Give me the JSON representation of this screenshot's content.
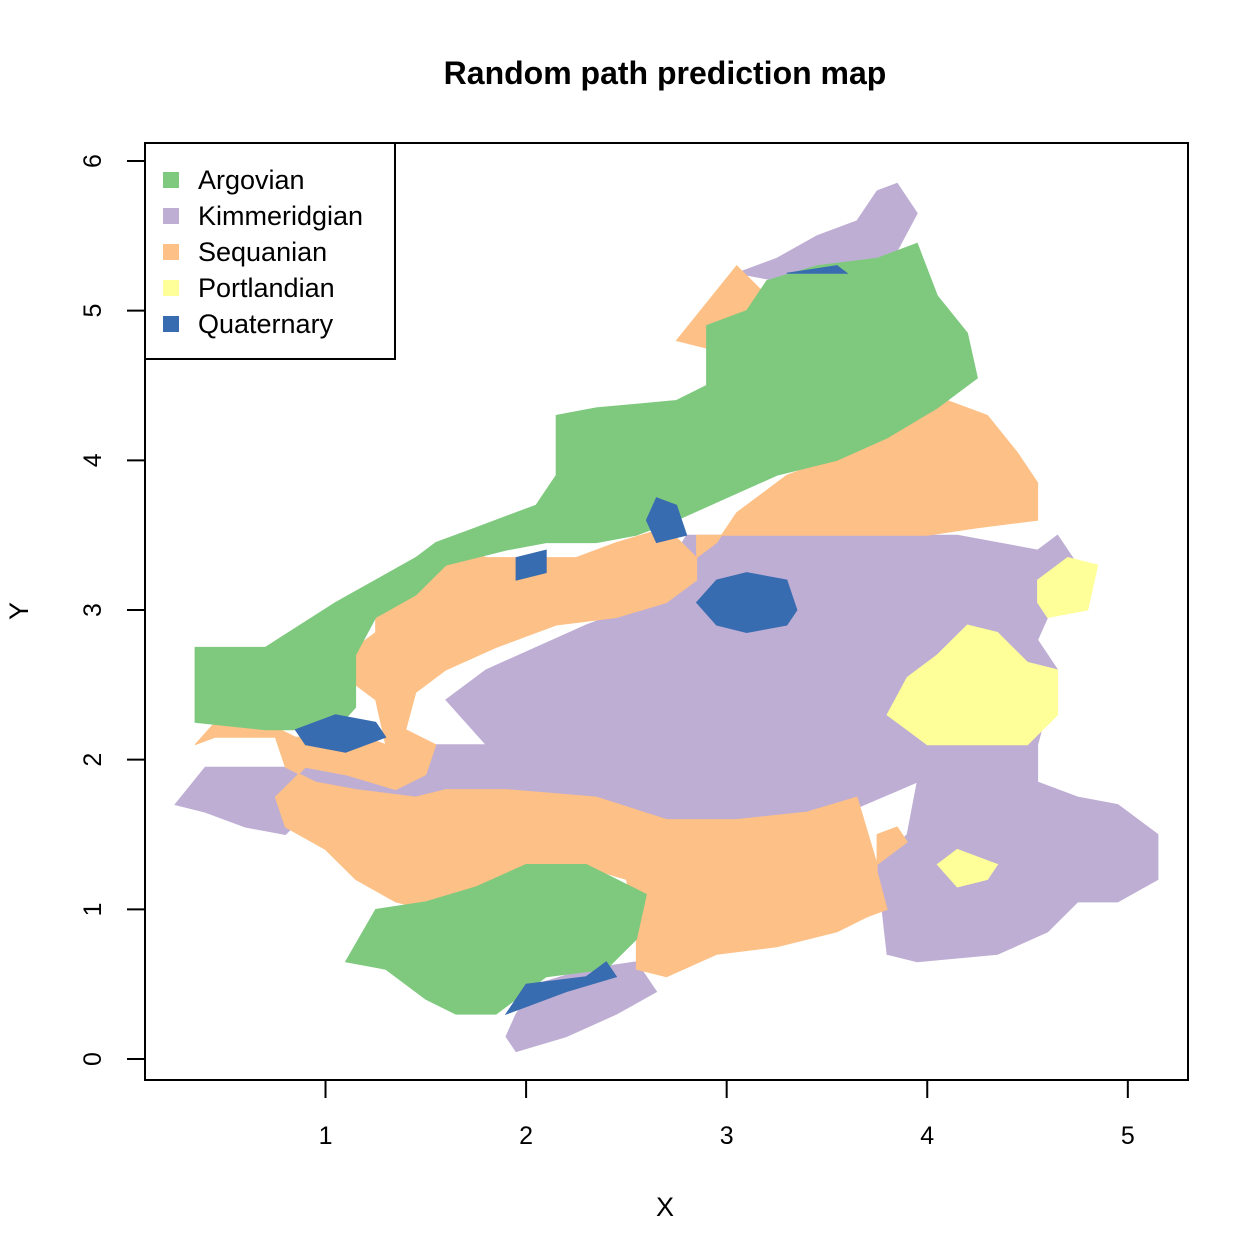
{
  "chart_data": {
    "type": "map",
    "title": "Random path prediction map",
    "xlabel": "X",
    "ylabel": "Y",
    "xlim": [
      0.1,
      5.3
    ],
    "ylim": [
      -0.14,
      6.12
    ],
    "x_ticks": [
      "1",
      "2",
      "3",
      "4",
      "5"
    ],
    "y_ticks": [
      "0",
      "1",
      "2",
      "3",
      "4",
      "5",
      "6"
    ],
    "legend_position": "top-left",
    "legend": [
      {
        "name": "Argovian",
        "color": "#7fc97f"
      },
      {
        "name": "Kimmeridgian",
        "color": "#beaed4"
      },
      {
        "name": "Sequanian",
        "color": "#fdc086"
      },
      {
        "name": "Portlandian",
        "color": "#ffff99"
      },
      {
        "name": "Quaternary",
        "color": "#386cb0"
      }
    ],
    "regions": [
      {
        "class": "Kimmeridgian",
        "polygon": [
          [
            0.25,
            1.7
          ],
          [
            0.4,
            1.95
          ],
          [
            0.85,
            1.95
          ],
          [
            1.3,
            2.1
          ],
          [
            1.5,
            2.1
          ],
          [
            1.8,
            2.1
          ],
          [
            1.6,
            2.4
          ],
          [
            1.8,
            2.6
          ],
          [
            2.3,
            2.9
          ],
          [
            2.6,
            3.05
          ],
          [
            2.8,
            3.5
          ],
          [
            3.3,
            3.5
          ],
          [
            4.15,
            3.5
          ],
          [
            4.55,
            3.4
          ],
          [
            4.65,
            3.5
          ],
          [
            4.75,
            3.3
          ],
          [
            4.65,
            3.1
          ],
          [
            4.55,
            2.8
          ],
          [
            4.65,
            2.6
          ],
          [
            4.55,
            2.1
          ],
          [
            4.55,
            1.85
          ],
          [
            4.75,
            1.75
          ],
          [
            4.95,
            1.7
          ],
          [
            5.15,
            1.5
          ],
          [
            5.15,
            1.2
          ],
          [
            4.95,
            1.05
          ],
          [
            4.75,
            1.05
          ],
          [
            4.6,
            0.85
          ],
          [
            4.35,
            0.7
          ],
          [
            3.95,
            0.65
          ],
          [
            3.8,
            0.7
          ],
          [
            3.75,
            1.3
          ],
          [
            3.9,
            1.5
          ],
          [
            3.95,
            1.85
          ],
          [
            3.6,
            1.65
          ],
          [
            3.35,
            1.6
          ],
          [
            2.95,
            1.6
          ],
          [
            2.7,
            1.55
          ],
          [
            2.55,
            1.65
          ],
          [
            2.35,
            1.75
          ],
          [
            1.95,
            1.75
          ],
          [
            1.6,
            1.75
          ],
          [
            1.4,
            1.7
          ],
          [
            1.15,
            1.75
          ],
          [
            0.95,
            1.7
          ],
          [
            0.8,
            1.5
          ],
          [
            0.6,
            1.55
          ],
          [
            0.4,
            1.65
          ]
        ]
      },
      {
        "class": "Kimmeridgian",
        "polygon": [
          [
            1.9,
            0.15
          ],
          [
            1.95,
            0.05
          ],
          [
            2.2,
            0.15
          ],
          [
            2.45,
            0.3
          ],
          [
            2.65,
            0.45
          ],
          [
            2.55,
            0.65
          ],
          [
            2.3,
            0.6
          ],
          [
            2.05,
            0.5
          ],
          [
            1.95,
            0.3
          ]
        ]
      },
      {
        "class": "Kimmeridgian",
        "polygon": [
          [
            3.05,
            5.25
          ],
          [
            3.25,
            5.35
          ],
          [
            3.45,
            5.5
          ],
          [
            3.65,
            5.6
          ],
          [
            3.75,
            5.8
          ],
          [
            3.85,
            5.85
          ],
          [
            3.95,
            5.65
          ],
          [
            3.85,
            5.4
          ],
          [
            3.85,
            5.2
          ],
          [
            3.4,
            5.25
          ],
          [
            3.25,
            5.2
          ]
        ]
      },
      {
        "class": "Sequanian",
        "polygon": [
          [
            0.35,
            2.1
          ],
          [
            0.45,
            2.25
          ],
          [
            0.7,
            2.25
          ],
          [
            0.85,
            2.15
          ],
          [
            1.2,
            2.15
          ],
          [
            1.3,
            2.1
          ],
          [
            1.25,
            2.4
          ],
          [
            1.1,
            2.55
          ],
          [
            1.1,
            2.7
          ],
          [
            1.25,
            2.85
          ],
          [
            1.25,
            3.15
          ],
          [
            1.45,
            3.35
          ],
          [
            1.6,
            3.45
          ],
          [
            1.8,
            3.35
          ],
          [
            2.05,
            3.35
          ],
          [
            2.25,
            3.35
          ],
          [
            2.45,
            3.45
          ],
          [
            2.7,
            3.55
          ],
          [
            2.85,
            3.35
          ],
          [
            2.95,
            3.45
          ],
          [
            3.05,
            3.65
          ],
          [
            3.3,
            3.9
          ],
          [
            3.7,
            4.1
          ],
          [
            3.95,
            4.3
          ],
          [
            4.1,
            4.4
          ],
          [
            4.3,
            4.3
          ],
          [
            4.45,
            4.05
          ],
          [
            4.55,
            3.85
          ],
          [
            4.55,
            3.6
          ],
          [
            4.25,
            3.55
          ],
          [
            4.0,
            3.5
          ],
          [
            3.7,
            3.5
          ],
          [
            3.25,
            3.5
          ],
          [
            2.85,
            3.5
          ],
          [
            2.85,
            3.2
          ],
          [
            2.7,
            3.05
          ],
          [
            2.45,
            2.95
          ],
          [
            2.15,
            2.9
          ],
          [
            1.85,
            2.75
          ],
          [
            1.6,
            2.6
          ],
          [
            1.45,
            2.45
          ],
          [
            1.4,
            2.2
          ],
          [
            1.55,
            2.1
          ],
          [
            1.5,
            1.9
          ],
          [
            1.35,
            1.8
          ],
          [
            1.1,
            1.9
          ],
          [
            0.9,
            1.95
          ],
          [
            0.75,
            1.75
          ],
          [
            0.8,
            1.55
          ],
          [
            1.0,
            1.4
          ],
          [
            1.15,
            1.2
          ],
          [
            1.35,
            1.05
          ],
          [
            1.5,
            1.0
          ],
          [
            1.7,
            1.05
          ],
          [
            1.9,
            1.2
          ],
          [
            2.25,
            1.3
          ],
          [
            2.5,
            1.2
          ],
          [
            2.55,
            0.9
          ],
          [
            2.55,
            0.6
          ],
          [
            2.7,
            0.55
          ],
          [
            2.95,
            0.7
          ],
          [
            3.25,
            0.75
          ],
          [
            3.55,
            0.85
          ],
          [
            3.7,
            0.95
          ],
          [
            3.8,
            1.0
          ],
          [
            3.75,
            1.25
          ],
          [
            3.75,
            1.5
          ],
          [
            3.85,
            1.55
          ],
          [
            3.9,
            1.45
          ],
          [
            3.75,
            1.3
          ],
          [
            3.65,
            1.75
          ],
          [
            3.4,
            1.65
          ],
          [
            3.05,
            1.6
          ],
          [
            2.7,
            1.6
          ],
          [
            2.35,
            1.75
          ],
          [
            1.9,
            1.8
          ],
          [
            1.6,
            1.8
          ],
          [
            1.45,
            1.75
          ],
          [
            1.15,
            1.8
          ],
          [
            0.95,
            1.85
          ],
          [
            0.8,
            1.95
          ],
          [
            0.75,
            2.15
          ],
          [
            0.45,
            2.15
          ]
        ]
      },
      {
        "class": "Sequanian",
        "polygon": [
          [
            2.75,
            4.8
          ],
          [
            2.9,
            5.05
          ],
          [
            3.05,
            5.3
          ],
          [
            3.2,
            5.1
          ],
          [
            3.1,
            4.85
          ],
          [
            2.9,
            4.75
          ]
        ]
      },
      {
        "class": "Argovian",
        "polygon": [
          [
            0.35,
            2.25
          ],
          [
            0.35,
            2.75
          ],
          [
            0.7,
            2.75
          ],
          [
            1.05,
            3.05
          ],
          [
            1.25,
            3.2
          ],
          [
            1.45,
            3.35
          ],
          [
            1.55,
            3.45
          ],
          [
            1.75,
            3.55
          ],
          [
            2.05,
            3.7
          ],
          [
            2.15,
            3.9
          ],
          [
            2.15,
            4.3
          ],
          [
            2.35,
            4.35
          ],
          [
            2.75,
            4.4
          ],
          [
            2.9,
            4.5
          ],
          [
            2.9,
            4.9
          ],
          [
            3.1,
            5.0
          ],
          [
            3.2,
            5.2
          ],
          [
            3.45,
            5.3
          ],
          [
            3.75,
            5.35
          ],
          [
            3.95,
            5.45
          ],
          [
            4.05,
            5.1
          ],
          [
            4.2,
            4.85
          ],
          [
            4.25,
            4.55
          ],
          [
            4.05,
            4.35
          ],
          [
            3.8,
            4.15
          ],
          [
            3.55,
            4.0
          ],
          [
            3.25,
            3.9
          ],
          [
            3.0,
            3.75
          ],
          [
            2.75,
            3.6
          ],
          [
            2.55,
            3.5
          ],
          [
            2.35,
            3.45
          ],
          [
            2.1,
            3.45
          ],
          [
            1.9,
            3.4
          ],
          [
            1.6,
            3.3
          ],
          [
            1.45,
            3.1
          ],
          [
            1.25,
            2.95
          ],
          [
            1.15,
            2.7
          ],
          [
            1.15,
            2.35
          ],
          [
            1.05,
            2.2
          ],
          [
            0.7,
            2.2
          ]
        ]
      },
      {
        "class": "Argovian",
        "polygon": [
          [
            1.1,
            0.65
          ],
          [
            1.25,
            1.0
          ],
          [
            1.5,
            1.05
          ],
          [
            1.75,
            1.15
          ],
          [
            2.0,
            1.3
          ],
          [
            2.3,
            1.3
          ],
          [
            2.6,
            1.1
          ],
          [
            2.55,
            0.8
          ],
          [
            2.4,
            0.6
          ],
          [
            2.1,
            0.55
          ],
          [
            1.85,
            0.3
          ],
          [
            1.65,
            0.3
          ],
          [
            1.5,
            0.4
          ],
          [
            1.3,
            0.6
          ]
        ]
      },
      {
        "class": "Portlandian",
        "polygon": [
          [
            3.8,
            2.3
          ],
          [
            3.9,
            2.55
          ],
          [
            4.05,
            2.7
          ],
          [
            4.2,
            2.9
          ],
          [
            4.35,
            2.85
          ],
          [
            4.5,
            2.65
          ],
          [
            4.65,
            2.6
          ],
          [
            4.65,
            2.3
          ],
          [
            4.5,
            2.1
          ],
          [
            4.3,
            2.1
          ],
          [
            4.0,
            2.1
          ],
          [
            3.9,
            2.2
          ]
        ]
      },
      {
        "class": "Portlandian",
        "polygon": [
          [
            4.55,
            3.05
          ],
          [
            4.6,
            2.95
          ],
          [
            4.8,
            3.0
          ],
          [
            4.85,
            3.3
          ],
          [
            4.7,
            3.35
          ],
          [
            4.55,
            3.2
          ]
        ]
      },
      {
        "class": "Portlandian",
        "polygon": [
          [
            4.05,
            1.3
          ],
          [
            4.15,
            1.4
          ],
          [
            4.35,
            1.3
          ],
          [
            4.3,
            1.2
          ],
          [
            4.15,
            1.15
          ]
        ]
      },
      {
        "class": "Quaternary",
        "polygon": [
          [
            2.85,
            3.05
          ],
          [
            2.95,
            3.2
          ],
          [
            3.1,
            3.25
          ],
          [
            3.3,
            3.2
          ],
          [
            3.35,
            3.0
          ],
          [
            3.3,
            2.9
          ],
          [
            3.1,
            2.85
          ],
          [
            2.95,
            2.9
          ]
        ]
      },
      {
        "class": "Quaternary",
        "polygon": [
          [
            2.6,
            3.6
          ],
          [
            2.65,
            3.75
          ],
          [
            2.75,
            3.7
          ],
          [
            2.8,
            3.5
          ],
          [
            2.65,
            3.45
          ]
        ]
      },
      {
        "class": "Quaternary",
        "polygon": [
          [
            1.95,
            3.35
          ],
          [
            2.1,
            3.4
          ],
          [
            2.1,
            3.25
          ],
          [
            1.95,
            3.2
          ]
        ]
      },
      {
        "class": "Quaternary",
        "polygon": [
          [
            0.85,
            2.2
          ],
          [
            1.05,
            2.3
          ],
          [
            1.25,
            2.25
          ],
          [
            1.3,
            2.15
          ],
          [
            1.1,
            2.05
          ],
          [
            0.9,
            2.1
          ]
        ]
      },
      {
        "class": "Quaternary",
        "polygon": [
          [
            1.9,
            0.3
          ],
          [
            2.0,
            0.5
          ],
          [
            2.3,
            0.55
          ],
          [
            2.4,
            0.65
          ],
          [
            2.45,
            0.55
          ],
          [
            2.2,
            0.45
          ],
          [
            2.0,
            0.35
          ]
        ]
      },
      {
        "class": "Quaternary",
        "polygon": [
          [
            3.3,
            5.25
          ],
          [
            3.55,
            5.3
          ],
          [
            3.6,
            5.25
          ]
        ]
      }
    ]
  }
}
